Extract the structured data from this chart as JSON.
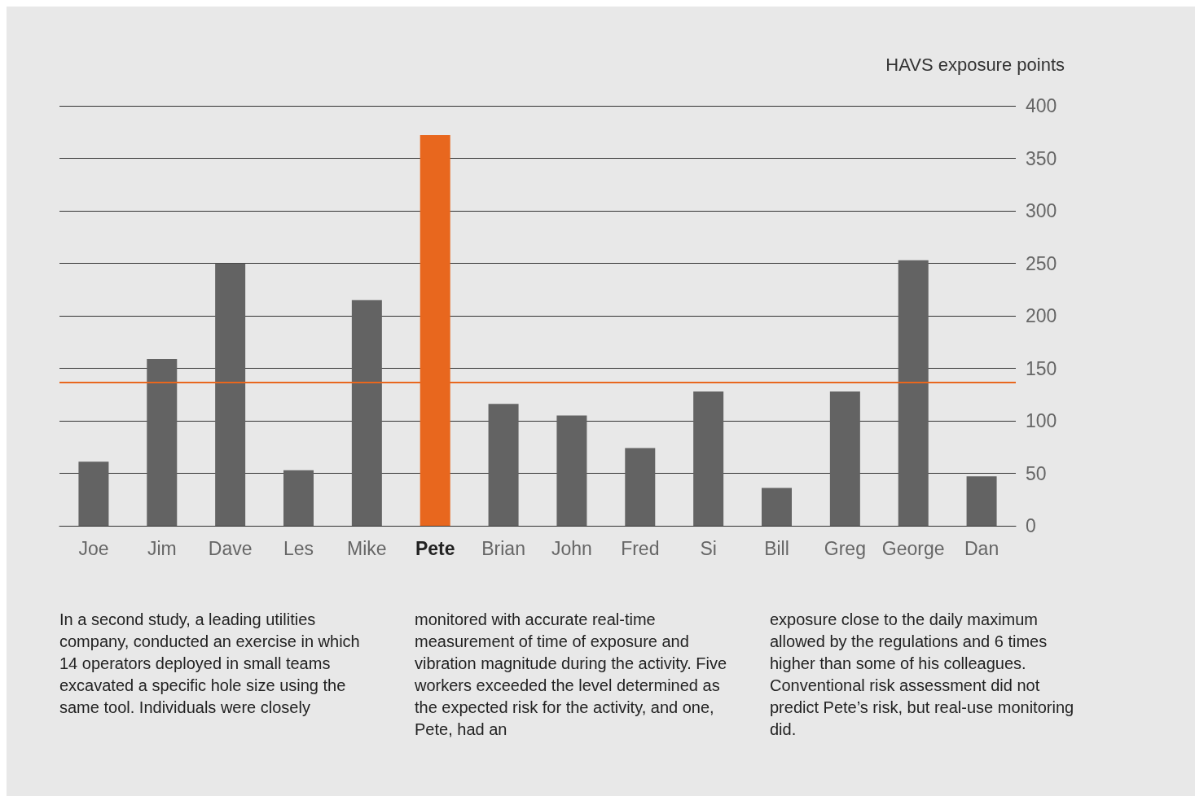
{
  "chart_data": {
    "type": "bar",
    "ylabel": "HAVS exposure points",
    "categories": [
      "Joe",
      "Jim",
      "Dave",
      "Les",
      "Mike",
      "Pete",
      "Brian",
      "John",
      "Fred",
      "Si",
      "Bill",
      "Greg",
      "George",
      "Dan"
    ],
    "values": [
      61,
      159,
      250,
      53,
      215,
      372,
      116,
      105,
      74,
      128,
      36,
      128,
      253,
      47
    ],
    "colors": [
      "#636363",
      "#636363",
      "#636363",
      "#636363",
      "#636363",
      "#e8671e",
      "#636363",
      "#636363",
      "#636363",
      "#636363",
      "#636363",
      "#636363",
      "#636363",
      "#636363"
    ],
    "ylim": [
      0,
      400
    ],
    "yticks": [
      0,
      50,
      100,
      150,
      200,
      250,
      300,
      350,
      400
    ],
    "grid": "y",
    "ref_lines": [
      {
        "axis": "y",
        "value": 137,
        "color": "#e8671e"
      }
    ],
    "annotations": [
      "In a second study, a leading utilities company, conducted an exercise in which 14 operators deployed in small teams excavated a specific hole size using the same tool. Individuals were closely",
      "monitored with accurate real-time measurement of time of exposure and vibration magnitude during the activity. Five workers exceeded the level determined as the expected risk for the activity, and one, Pete, had an",
      "exposure close to the daily maximum allowed by the regulations and 6 times higher than some of his colleagues. Conventional risk assessment did not predict Pete’s risk, but real-use monitoring did."
    ]
  }
}
